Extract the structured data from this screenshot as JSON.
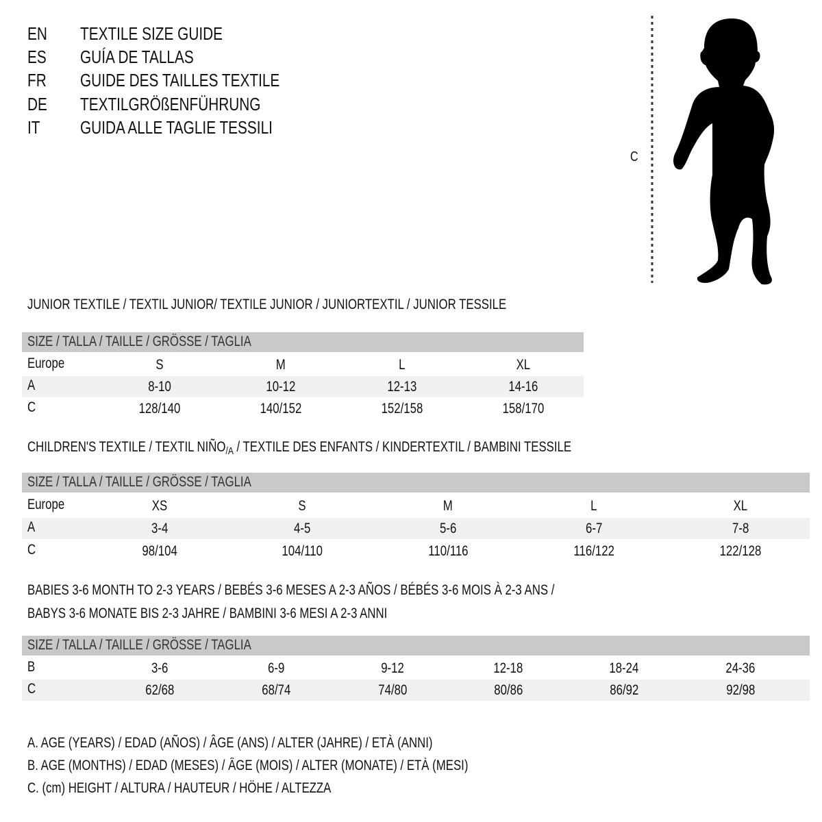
{
  "header": {
    "languages": [
      {
        "code": "EN",
        "title": "TEXTILE SIZE GUIDE"
      },
      {
        "code": "ES",
        "title": "GUÍA DE TALLAS"
      },
      {
        "code": "FR",
        "title": "GUIDE DES TAILLES TEXTILE"
      },
      {
        "code": "DE",
        "title": "TEXTILGRÖßENFÜHRUNG"
      },
      {
        "code": "IT",
        "title": "GUIDA ALLE TAGLIE TESSILI"
      }
    ],
    "figure_label": "C"
  },
  "junior": {
    "title": "JUNIOR TEXTILE / TEXTIL JUNIOR/ TEXTILE JUNIOR / JUNIORTEXTIL / JUNIOR TESSILE",
    "size_header": "SIZE / TALLA / TAILLE / GRÖSSE / TAGLIA",
    "rows": [
      {
        "label": "Europe",
        "values": [
          "S",
          "M",
          "L",
          "XL"
        ]
      },
      {
        "label": "A",
        "values": [
          "8-10",
          "10-12",
          "12-13",
          "14-16"
        ]
      },
      {
        "label": "C",
        "values": [
          "128/140",
          "140/152",
          "152/158",
          "158/170"
        ]
      }
    ]
  },
  "children": {
    "title_part1": "CHILDREN'S TEXTILE / TEXTIL NIÑO",
    "title_sub": "/A",
    "title_part2": " / TEXTILE DES ENFANTS / KINDERTEXTIL / BAMBINI TESSILE",
    "size_header": "SIZE / TALLA / TAILLE / GRÖSSE / TAGLIA",
    "rows": [
      {
        "label": "Europe",
        "values": [
          "XS",
          "S",
          "M",
          "L",
          "XL"
        ]
      },
      {
        "label": "A",
        "values": [
          "3-4",
          "4-5",
          "5-6",
          "6-7",
          "7-8"
        ]
      },
      {
        "label": "C",
        "values": [
          "98/104",
          "104/110",
          "110/116",
          "116/122",
          "122/128"
        ]
      }
    ]
  },
  "babies": {
    "title_line1": "BABIES 3-6 MONTH TO 2-3 YEARS / BEBÉS 3-6 MESES A 2-3 AÑOS / BÉBÉS 3-6 MOIS À 2-3 ANS /",
    "title_line2": "BABYS 3-6 MONATE BIS 2-3 JAHRE / BAMBINI 3-6 MESI A 2-3 ANNI",
    "size_header": "SIZE / TALLA / TAILLE / GRÖSSE / TAGLIA",
    "rows": [
      {
        "label": "B",
        "values": [
          "3-6",
          "6-9",
          "9-12",
          "12-18",
          "18-24",
          "24-36"
        ]
      },
      {
        "label": "C",
        "values": [
          "62/68",
          "68/74",
          "74/80",
          "80/86",
          "86/92",
          "92/98"
        ]
      }
    ]
  },
  "legend": [
    "A. AGE (YEARS) / EDAD (AÑOS) / ÂGE (ANS) / ALTER (JAHRE) / ETÀ (ANNI)",
    "B. AGE (MONTHS) / EDAD (MESES) / ÂGE (MOIS) / ALTER (MONATE) / ETÀ (MESI)",
    "C. (cm) HEIGHT / ALTURA / HAUTEUR / HÖHE / ALTEZZA"
  ],
  "colors": {
    "header_row": "#c9c9c9",
    "shaded_row": "#f0f0f0",
    "text": "#111111"
  }
}
